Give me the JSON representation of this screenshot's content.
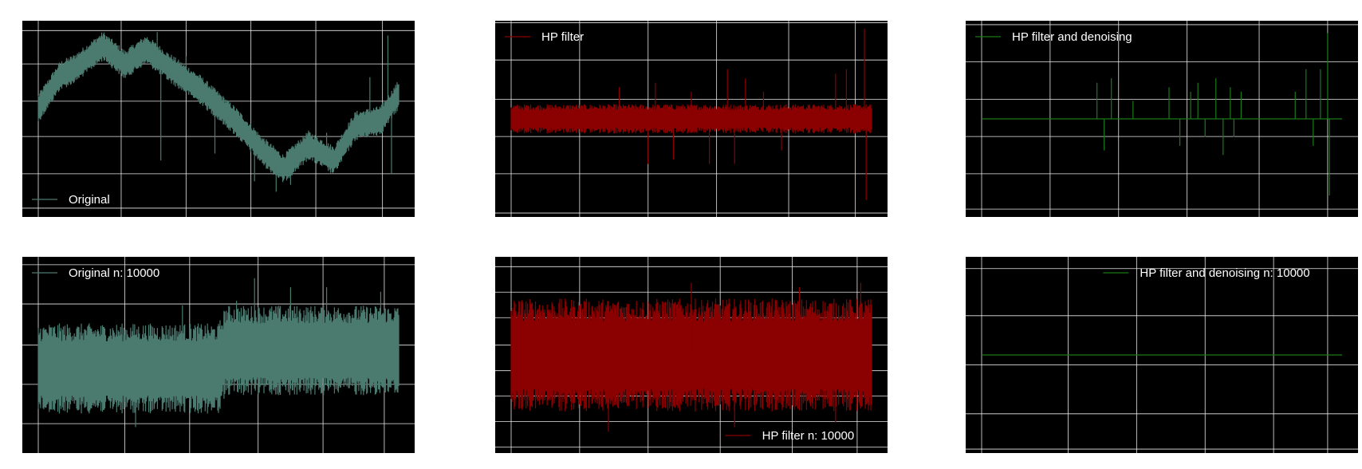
{
  "figure": {
    "background": "#ffffff",
    "axes_background": "#000000",
    "grid_color": "#e8e8e8",
    "grid": true
  },
  "chart_data": [
    {
      "type": "line",
      "panel": "original",
      "color": "#4b7a6f",
      "legend": {
        "label": "Original",
        "placement": "lower-left"
      },
      "description_of_signal": "noisy trend",
      "ylim": [
        -1.3,
        1.3
      ],
      "trend": [
        [
          0,
          0.15
        ],
        [
          0.06,
          0.62
        ],
        [
          0.1,
          0.72
        ],
        [
          0.18,
          1.05
        ],
        [
          0.24,
          0.78
        ],
        [
          0.3,
          1.0
        ],
        [
          0.36,
          0.75
        ],
        [
          0.45,
          0.42
        ],
        [
          0.55,
          -0.05
        ],
        [
          0.62,
          -0.45
        ],
        [
          0.68,
          -0.72
        ],
        [
          0.75,
          -0.38
        ],
        [
          0.82,
          -0.6
        ],
        [
          0.88,
          -0.1
        ],
        [
          0.95,
          -0.02
        ],
        [
          1.0,
          0.35
        ]
      ],
      "band": 0.17,
      "spikes": [
        [
          0.33,
          1.25
        ],
        [
          0.34,
          -0.6
        ],
        [
          0.41,
          0.9
        ],
        [
          0.49,
          -0.5
        ],
        [
          0.6,
          -0.9
        ],
        [
          0.66,
          -1.05
        ],
        [
          0.7,
          -0.95
        ],
        [
          0.8,
          -0.2
        ],
        [
          0.92,
          0.6
        ],
        [
          0.97,
          1.2
        ],
        [
          0.98,
          -0.8
        ]
      ]
    },
    {
      "type": "line",
      "panel": "hp",
      "color": "#8b0000",
      "legend": {
        "label": "HP filter",
        "placement": "upper-left"
      },
      "ylim": [
        -1.0,
        1.0
      ],
      "trend": [
        [
          0,
          0.0
        ],
        [
          1,
          0.0
        ]
      ],
      "band": 0.13,
      "spikes": [
        [
          0.3,
          0.35
        ],
        [
          0.38,
          -0.5
        ],
        [
          0.4,
          0.4
        ],
        [
          0.45,
          -0.45
        ],
        [
          0.5,
          0.3
        ],
        [
          0.55,
          -0.5
        ],
        [
          0.6,
          0.55
        ],
        [
          0.62,
          -0.5
        ],
        [
          0.65,
          0.45
        ],
        [
          0.7,
          0.3
        ],
        [
          0.75,
          -0.35
        ],
        [
          0.9,
          0.5
        ],
        [
          0.93,
          0.55
        ],
        [
          0.98,
          1.0
        ],
        [
          0.985,
          -0.9
        ]
      ]
    },
    {
      "type": "line",
      "panel": "hp_denoise",
      "color": "#1a7a1a",
      "legend": {
        "label": "HP filter and denoising",
        "placement": "upper-left"
      },
      "ylim": [
        -1.0,
        1.0
      ],
      "trend": [
        [
          0,
          0.0
        ],
        [
          1,
          0.0
        ]
      ],
      "band": 0.0,
      "spikes": [
        [
          0.32,
          0.4
        ],
        [
          0.34,
          -0.35
        ],
        [
          0.36,
          0.45
        ],
        [
          0.42,
          0.2
        ],
        [
          0.52,
          0.35
        ],
        [
          0.55,
          -0.3
        ],
        [
          0.58,
          0.3
        ],
        [
          0.6,
          0.4
        ],
        [
          0.62,
          -0.2
        ],
        [
          0.65,
          0.45
        ],
        [
          0.67,
          -0.4
        ],
        [
          0.69,
          0.35
        ],
        [
          0.7,
          -0.2
        ],
        [
          0.72,
          0.3
        ],
        [
          0.87,
          0.3
        ],
        [
          0.9,
          0.55
        ],
        [
          0.92,
          -0.3
        ],
        [
          0.94,
          0.55
        ],
        [
          0.96,
          0.95
        ],
        [
          0.965,
          -0.85
        ]
      ]
    },
    {
      "type": "line",
      "panel": "original_n",
      "color": "#4b7a6f",
      "legend": {
        "label": "Original  n: 10000",
        "placement": "upper-left"
      },
      "ylim": [
        -1.0,
        1.0
      ],
      "trend": [
        [
          0,
          -0.15
        ],
        [
          0.5,
          -0.15
        ],
        [
          0.52,
          0.05
        ],
        [
          1,
          0.05
        ]
      ],
      "band": 0.4,
      "spikes": [
        [
          0.27,
          -0.8
        ],
        [
          0.4,
          0.55
        ],
        [
          0.55,
          0.6
        ],
        [
          0.6,
          0.85
        ],
        [
          0.7,
          0.75
        ],
        [
          0.8,
          0.75
        ],
        [
          0.95,
          0.7
        ]
      ]
    },
    {
      "type": "line",
      "panel": "hp_n",
      "color": "#8b0000",
      "legend": {
        "label": "HP filter n: 10000",
        "placement": "lower-right"
      },
      "ylim": [
        -1.0,
        1.0
      ],
      "trend": [
        [
          0,
          0.0
        ],
        [
          1,
          0.0
        ]
      ],
      "band": 0.5,
      "spikes": [
        [
          0.27,
          -0.85
        ],
        [
          0.5,
          0.8
        ],
        [
          0.62,
          -0.8
        ],
        [
          0.8,
          0.75
        ],
        [
          0.9,
          -0.75
        ],
        [
          0.97,
          0.8
        ]
      ]
    },
    {
      "type": "line",
      "panel": "hp_denoise_n",
      "color": "#1a7a1a",
      "legend": {
        "label": "HP filter and denoising n: 10000",
        "placement": "upper-right"
      },
      "ylim": [
        -1.0,
        1.0
      ],
      "trend": [
        [
          0,
          0.0
        ],
        [
          1,
          0.0
        ]
      ],
      "band": 0.0,
      "spikes": []
    }
  ]
}
